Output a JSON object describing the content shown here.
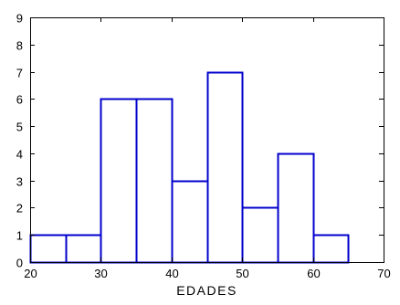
{
  "chart_data": {
    "type": "bar",
    "subtype": "histogram",
    "xlabel": "EDADES",
    "ylabel": "",
    "title": "",
    "xlim": [
      20,
      70
    ],
    "ylim": [
      0,
      9
    ],
    "bin_width": 5,
    "bins": [
      {
        "start": 20,
        "end": 25,
        "count": 1
      },
      {
        "start": 25,
        "end": 30,
        "count": 1
      },
      {
        "start": 30,
        "end": 35,
        "count": 6
      },
      {
        "start": 35,
        "end": 40,
        "count": 6
      },
      {
        "start": 40,
        "end": 45,
        "count": 3
      },
      {
        "start": 45,
        "end": 50,
        "count": 7
      },
      {
        "start": 50,
        "end": 55,
        "count": 2
      },
      {
        "start": 55,
        "end": 60,
        "count": 4
      },
      {
        "start": 60,
        "end": 65,
        "count": 1
      }
    ],
    "x_ticks": [
      "20",
      "30",
      "40",
      "50",
      "60",
      "70"
    ],
    "y_ticks": [
      "0",
      "1",
      "2",
      "3",
      "4",
      "5",
      "6",
      "7",
      "8",
      "9"
    ],
    "grid": false,
    "bar_fill": "#ffffff",
    "bar_stroke": "#0000cc",
    "axis_color": "#000000"
  }
}
